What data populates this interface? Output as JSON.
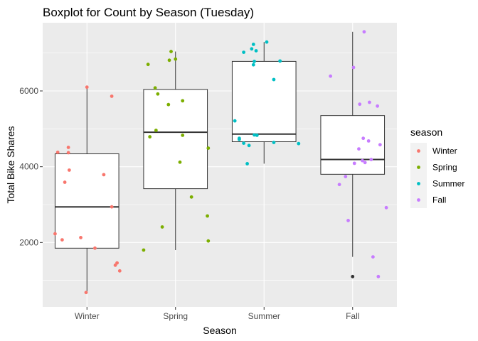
{
  "chart_data": {
    "type": "boxplot",
    "title": "Boxplot for Count by Season (Tuesday)",
    "xlabel": "Season",
    "ylabel": "Total Bike Shares",
    "categories": [
      "Winter",
      "Spring",
      "Summer",
      "Fall"
    ],
    "ylim": [
      300,
      7800
    ],
    "yticks": [
      2000,
      4000,
      6000
    ],
    "grid": true,
    "panel_background": "#ebebeb",
    "grid_color": "#ffffff",
    "box_fill": "#ffffff",
    "box_stroke": "#333333",
    "outlier_color": "#333333",
    "legend": {
      "title": "season",
      "position": "right",
      "entries": [
        {
          "label": "Winter",
          "color": "#f8766d"
        },
        {
          "label": "Spring",
          "color": "#7cae00"
        },
        {
          "label": "Summer",
          "color": "#00bfc4"
        },
        {
          "label": "Fall",
          "color": "#c77cff"
        }
      ]
    },
    "boxes": [
      {
        "category": "Winter",
        "whisker_low": 680,
        "q1": 1850,
        "median": 2940,
        "q3": 4340,
        "whisker_high": 6100,
        "outliers": []
      },
      {
        "category": "Spring",
        "whisker_low": 1800,
        "q1": 3420,
        "median": 4910,
        "q3": 6040,
        "whisker_high": 7040,
        "outliers": []
      },
      {
        "category": "Summer",
        "whisker_low": 4080,
        "q1": 4660,
        "median": 4860,
        "q3": 6780,
        "whisker_high": 7290,
        "outliers": []
      },
      {
        "category": "Fall",
        "whisker_low": 1620,
        "q1": 3800,
        "median": 4190,
        "q3": 5350,
        "whisker_high": 7560,
        "outliers": [
          1100
        ]
      }
    ],
    "points": [
      {
        "category": "Winter",
        "offset": -0.36,
        "y": 2230
      },
      {
        "category": "Winter",
        "offset": -0.33,
        "y": 4380
      },
      {
        "category": "Winter",
        "offset": -0.28,
        "y": 2070
      },
      {
        "category": "Winter",
        "offset": -0.25,
        "y": 3590
      },
      {
        "category": "Winter",
        "offset": -0.21,
        "y": 4510
      },
      {
        "category": "Winter",
        "offset": -0.21,
        "y": 4370
      },
      {
        "category": "Winter",
        "offset": -0.2,
        "y": 3910
      },
      {
        "category": "Winter",
        "offset": -0.07,
        "y": 2130
      },
      {
        "category": "Winter",
        "offset": 0.0,
        "y": 6100
      },
      {
        "category": "Winter",
        "offset": -0.01,
        "y": 680
      },
      {
        "category": "Winter",
        "offset": 0.09,
        "y": 1850
      },
      {
        "category": "Winter",
        "offset": 0.19,
        "y": 3790
      },
      {
        "category": "Winter",
        "offset": 0.28,
        "y": 5860
      },
      {
        "category": "Winter",
        "offset": 0.28,
        "y": 2940
      },
      {
        "category": "Winter",
        "offset": 0.32,
        "y": 1400
      },
      {
        "category": "Winter",
        "offset": 0.34,
        "y": 1460
      },
      {
        "category": "Winter",
        "offset": 0.37,
        "y": 1250
      },
      {
        "category": "Spring",
        "offset": -0.36,
        "y": 1800
      },
      {
        "category": "Spring",
        "offset": -0.31,
        "y": 6700
      },
      {
        "category": "Spring",
        "offset": -0.29,
        "y": 4790
      },
      {
        "category": "Spring",
        "offset": -0.23,
        "y": 6080
      },
      {
        "category": "Spring",
        "offset": -0.22,
        "y": 4960
      },
      {
        "category": "Spring",
        "offset": -0.2,
        "y": 5920
      },
      {
        "category": "Spring",
        "offset": -0.15,
        "y": 2410
      },
      {
        "category": "Spring",
        "offset": -0.08,
        "y": 5640
      },
      {
        "category": "Spring",
        "offset": -0.07,
        "y": 6810
      },
      {
        "category": "Spring",
        "offset": -0.05,
        "y": 7040
      },
      {
        "category": "Spring",
        "offset": 0.0,
        "y": 6840
      },
      {
        "category": "Spring",
        "offset": 0.05,
        "y": 4120
      },
      {
        "category": "Spring",
        "offset": 0.08,
        "y": 5740
      },
      {
        "category": "Spring",
        "offset": 0.08,
        "y": 4830
      },
      {
        "category": "Spring",
        "offset": 0.18,
        "y": 3200
      },
      {
        "category": "Spring",
        "offset": 0.36,
        "y": 2700
      },
      {
        "category": "Spring",
        "offset": 0.37,
        "y": 2040
      },
      {
        "category": "Spring",
        "offset": 0.37,
        "y": 4490
      },
      {
        "category": "Summer",
        "offset": -0.33,
        "y": 5210
      },
      {
        "category": "Summer",
        "offset": -0.28,
        "y": 4750
      },
      {
        "category": "Summer",
        "offset": -0.28,
        "y": 4720
      },
      {
        "category": "Summer",
        "offset": -0.23,
        "y": 7020
      },
      {
        "category": "Summer",
        "offset": -0.23,
        "y": 4620
      },
      {
        "category": "Summer",
        "offset": -0.19,
        "y": 4080
      },
      {
        "category": "Summer",
        "offset": -0.17,
        "y": 4560
      },
      {
        "category": "Summer",
        "offset": -0.14,
        "y": 7110
      },
      {
        "category": "Summer",
        "offset": -0.12,
        "y": 6690
      },
      {
        "category": "Summer",
        "offset": -0.12,
        "y": 7230
      },
      {
        "category": "Summer",
        "offset": -0.11,
        "y": 6780
      },
      {
        "category": "Summer",
        "offset": -0.11,
        "y": 4840
      },
      {
        "category": "Summer",
        "offset": -0.09,
        "y": 7060
      },
      {
        "category": "Summer",
        "offset": -0.08,
        "y": 4830
      },
      {
        "category": "Summer",
        "offset": 0.03,
        "y": 7290
      },
      {
        "category": "Summer",
        "offset": 0.11,
        "y": 6300
      },
      {
        "category": "Summer",
        "offset": 0.11,
        "y": 4640
      },
      {
        "category": "Summer",
        "offset": 0.18,
        "y": 6790
      },
      {
        "category": "Summer",
        "offset": 0.39,
        "y": 4610
      },
      {
        "category": "Fall",
        "offset": -0.25,
        "y": 6390
      },
      {
        "category": "Fall",
        "offset": -0.15,
        "y": 3530
      },
      {
        "category": "Fall",
        "offset": -0.08,
        "y": 3740
      },
      {
        "category": "Fall",
        "offset": -0.05,
        "y": 2580
      },
      {
        "category": "Fall",
        "offset": 0.01,
        "y": 6620
      },
      {
        "category": "Fall",
        "offset": 0.02,
        "y": 4090
      },
      {
        "category": "Fall",
        "offset": 0.07,
        "y": 4470
      },
      {
        "category": "Fall",
        "offset": 0.08,
        "y": 5650
      },
      {
        "category": "Fall",
        "offset": 0.12,
        "y": 4750
      },
      {
        "category": "Fall",
        "offset": 0.11,
        "y": 4160
      },
      {
        "category": "Fall",
        "offset": 0.13,
        "y": 7560
      },
      {
        "category": "Fall",
        "offset": 0.14,
        "y": 4110
      },
      {
        "category": "Fall",
        "offset": 0.18,
        "y": 4680
      },
      {
        "category": "Fall",
        "offset": 0.19,
        "y": 5700
      },
      {
        "category": "Fall",
        "offset": 0.21,
        "y": 4190
      },
      {
        "category": "Fall",
        "offset": 0.23,
        "y": 1620
      },
      {
        "category": "Fall",
        "offset": 0.28,
        "y": 5600
      },
      {
        "category": "Fall",
        "offset": 0.29,
        "y": 1100
      },
      {
        "category": "Fall",
        "offset": 0.31,
        "y": 4580
      },
      {
        "category": "Fall",
        "offset": 0.38,
        "y": 2920
      }
    ]
  }
}
